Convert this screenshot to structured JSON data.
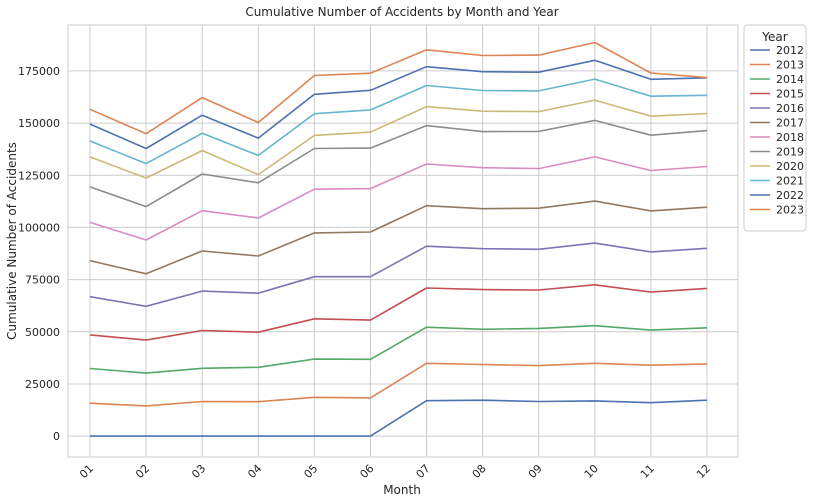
{
  "chart_data": {
    "type": "line",
    "title": "Cumulative Number of Accidents by Month and Year",
    "xlabel": "Month",
    "ylabel": "Cumulative Number of Accidents",
    "categories": [
      "01",
      "02",
      "03",
      "04",
      "05",
      "06",
      "07",
      "08",
      "09",
      "10",
      "11",
      "12"
    ],
    "ylim": [
      -10000,
      197000
    ],
    "yticks": [
      0,
      25000,
      50000,
      75000,
      100000,
      125000,
      150000,
      175000
    ],
    "ytick_labels": [
      "0",
      "25000",
      "50000",
      "75000",
      "100000",
      "125000",
      "150000",
      "175000"
    ],
    "grid": true,
    "legend": {
      "title": "Year",
      "placement": "outside-top-right"
    },
    "series": [
      {
        "name": "2012",
        "color": "#4c72b0",
        "values": [
          0,
          0,
          0,
          0,
          0,
          0,
          17000,
          17200,
          16600,
          16900,
          16000,
          17200
        ]
      },
      {
        "name": "2013",
        "color": "#dd8452",
        "values": [
          15800,
          14500,
          16600,
          16500,
          18600,
          18300,
          34900,
          34300,
          33800,
          34900,
          34000,
          34600
        ]
      },
      {
        "name": "2014",
        "color": "#55a868",
        "values": [
          32400,
          30200,
          32500,
          33000,
          36900,
          36800,
          52200,
          51200,
          51600,
          52900,
          50800,
          51900
        ]
      },
      {
        "name": "2015",
        "color": "#c44e52",
        "values": [
          48500,
          46000,
          50600,
          49800,
          56200,
          55600,
          71000,
          70200,
          70000,
          72500,
          69000,
          70800
        ]
      },
      {
        "name": "2016",
        "color": "#8172b3",
        "values": [
          66800,
          62200,
          69500,
          68500,
          76400,
          76400,
          91000,
          89800,
          89500,
          92500,
          88300,
          90000
        ]
      },
      {
        "name": "2017",
        "color": "#937860",
        "values": [
          84100,
          77800,
          88700,
          86300,
          97400,
          97800,
          110400,
          109000,
          109200,
          112600,
          107900,
          109700
        ]
      },
      {
        "name": "2018",
        "color": "#da8bc3",
        "values": [
          102400,
          94000,
          108000,
          104500,
          118300,
          118600,
          130400,
          128600,
          128200,
          133800,
          127300,
          129200
        ]
      },
      {
        "name": "2019",
        "color": "#8c8c8c",
        "values": [
          119400,
          110000,
          125600,
          121400,
          137800,
          138000,
          148800,
          145900,
          146000,
          151300,
          144200,
          146400
        ]
      },
      {
        "name": "2020",
        "color": "#ccb974",
        "values": [
          133800,
          123700,
          136800,
          125300,
          144100,
          145700,
          157900,
          155700,
          155500,
          161000,
          153300,
          154600
        ]
      },
      {
        "name": "2021",
        "color": "#64b5cd",
        "values": [
          141400,
          130600,
          145100,
          134500,
          154500,
          156300,
          168000,
          165600,
          165400,
          171100,
          162900,
          163300
        ]
      },
      {
        "name": "2022",
        "color": "#4c72b0",
        "values": [
          149500,
          137800,
          153800,
          142800,
          163800,
          165700,
          177000,
          174600,
          174400,
          180100,
          171000,
          171700
        ]
      },
      {
        "name": "2023",
        "color": "#dd8452",
        "values": [
          156600,
          144900,
          162200,
          150300,
          172800,
          173900,
          185100,
          182400,
          182600,
          188600,
          174000,
          171800
        ]
      }
    ]
  }
}
